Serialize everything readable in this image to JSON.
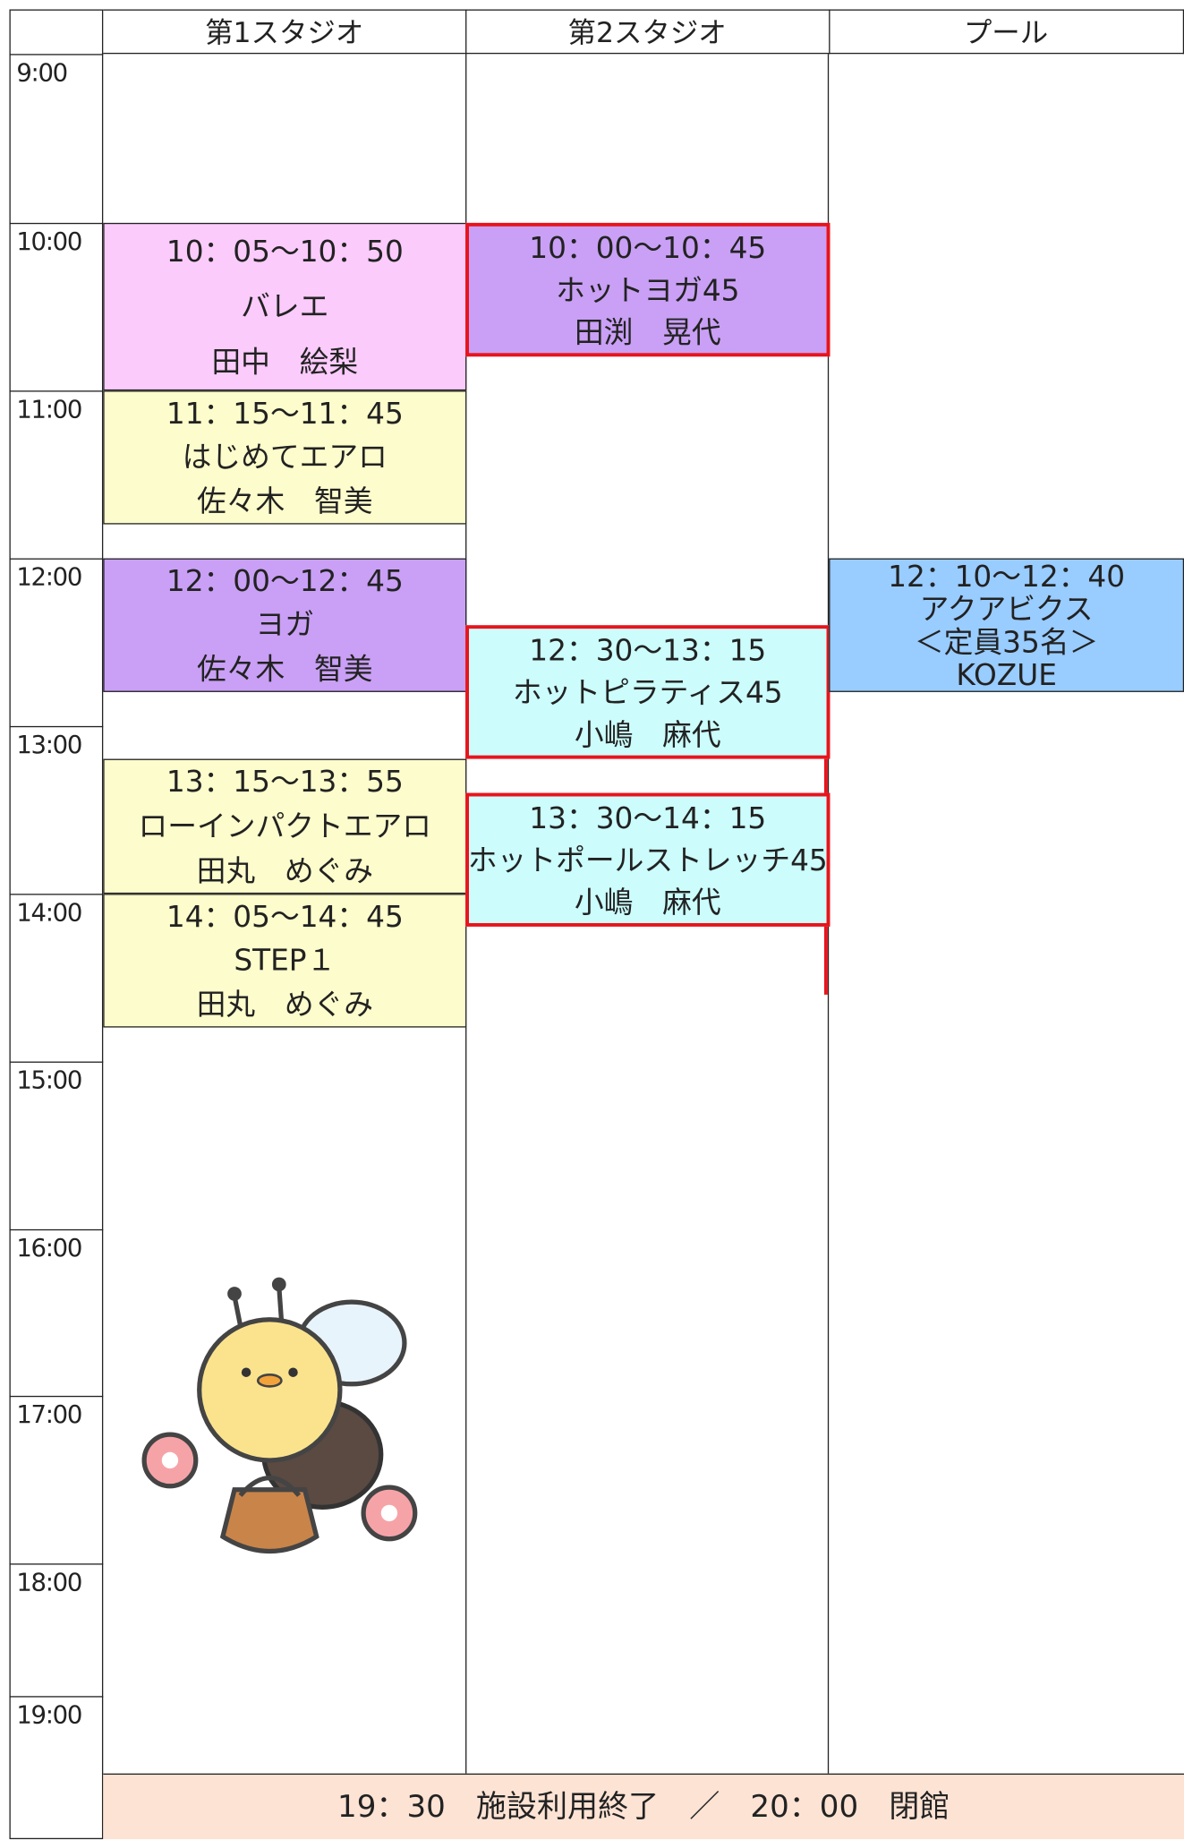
{
  "header": {
    "columns": [
      "第1スタジオ",
      "第2スタジオ",
      "プール"
    ]
  },
  "time_labels": [
    "9:00",
    "10:00",
    "11:00",
    "12:00",
    "13:00",
    "14:00",
    "15:00",
    "16:00",
    "17:00",
    "18:00",
    "19:00"
  ],
  "columns": [
    {
      "events": [
        {
          "lines": [
            "10：05～10：50",
            "バレエ",
            "田中　絵梨"
          ]
        },
        {
          "lines": [
            "11：15～11：45",
            "はじめてエアロ",
            "佐々木　智美"
          ]
        },
        {
          "lines": [
            "12：00～12：45",
            "ヨガ",
            "佐々木　智美"
          ]
        },
        {
          "lines": [
            "13：15～13：55",
            "ローインパクトエアロ",
            "田丸　めぐみ"
          ]
        },
        {
          "lines": [
            "14：05～14：45",
            "STEP１",
            "田丸　めぐみ"
          ]
        }
      ]
    },
    {
      "events": [
        {
          "lines": [
            "10：00～10：45",
            "ホットヨガ45",
            "田渕　晃代"
          ]
        },
        {
          "lines": [
            "12：30～13：15",
            "ホットピラティス45",
            "小嶋　麻代"
          ]
        },
        {
          "lines": [
            "13：30～14：15",
            "ホットポールストレッチ45",
            "小嶋　麻代"
          ]
        }
      ]
    },
    {
      "events": [
        {
          "lines": [
            "12：10～12：40",
            "アクアビクス",
            "＜定員35名＞",
            "KOZUE"
          ]
        }
      ]
    }
  ],
  "footer": "19：30　施設利用終了　／　20：00　閉館"
}
